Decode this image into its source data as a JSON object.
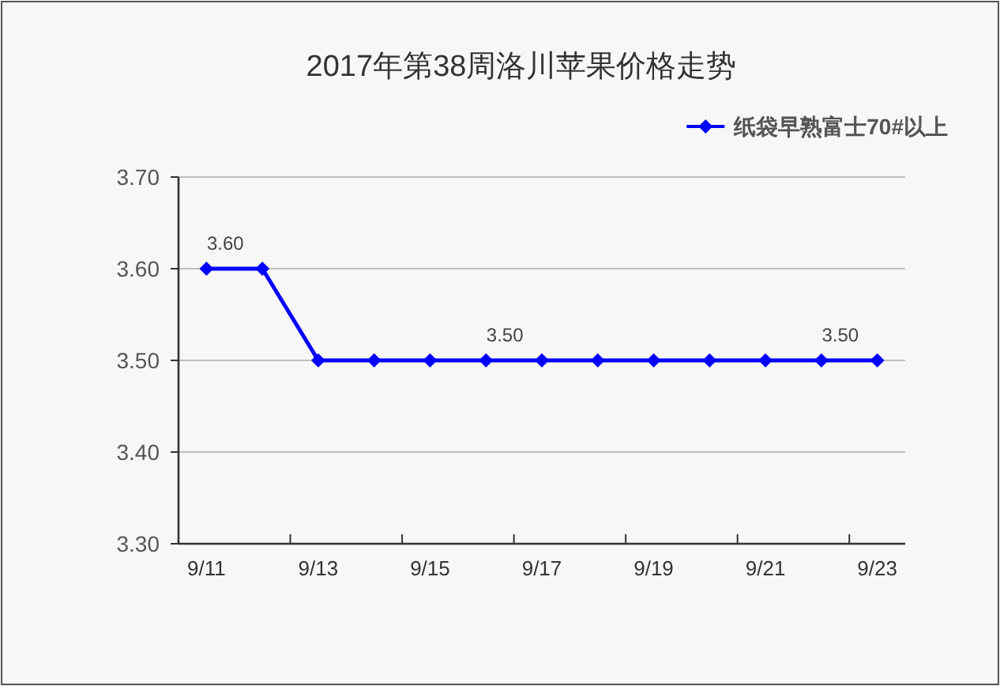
{
  "chart_data": {
    "type": "line",
    "title": "2017年第38周洛川苹果价格走势",
    "categories": [
      "9/11",
      null,
      "9/13",
      null,
      "9/15",
      null,
      "9/17",
      null,
      "9/19",
      null,
      "9/21",
      null,
      "9/23"
    ],
    "series": [
      {
        "name": "纸袋早熟富士70#以上",
        "color": "#0000ff",
        "values": [
          3.6,
          3.6,
          3.5,
          3.5,
          3.5,
          3.5,
          3.5,
          3.5,
          3.5,
          3.5,
          3.5,
          3.5,
          3.5
        ],
        "value_labels": [
          "3.60",
          null,
          null,
          null,
          null,
          "3.50",
          null,
          null,
          null,
          null,
          null,
          "3.50",
          null
        ]
      }
    ],
    "ylim": [
      3.3,
      3.7
    ],
    "yticks": [
      {
        "value": 3.3,
        "label": "3.30"
      },
      {
        "value": 3.4,
        "label": "3.40"
      },
      {
        "value": 3.5,
        "label": "3.50"
      },
      {
        "value": 3.6,
        "label": "3.60"
      },
      {
        "value": 3.7,
        "label": "3.70"
      }
    ],
    "grid": "y",
    "legend": "top right",
    "marker": "diamond",
    "line_style": "solid"
  }
}
